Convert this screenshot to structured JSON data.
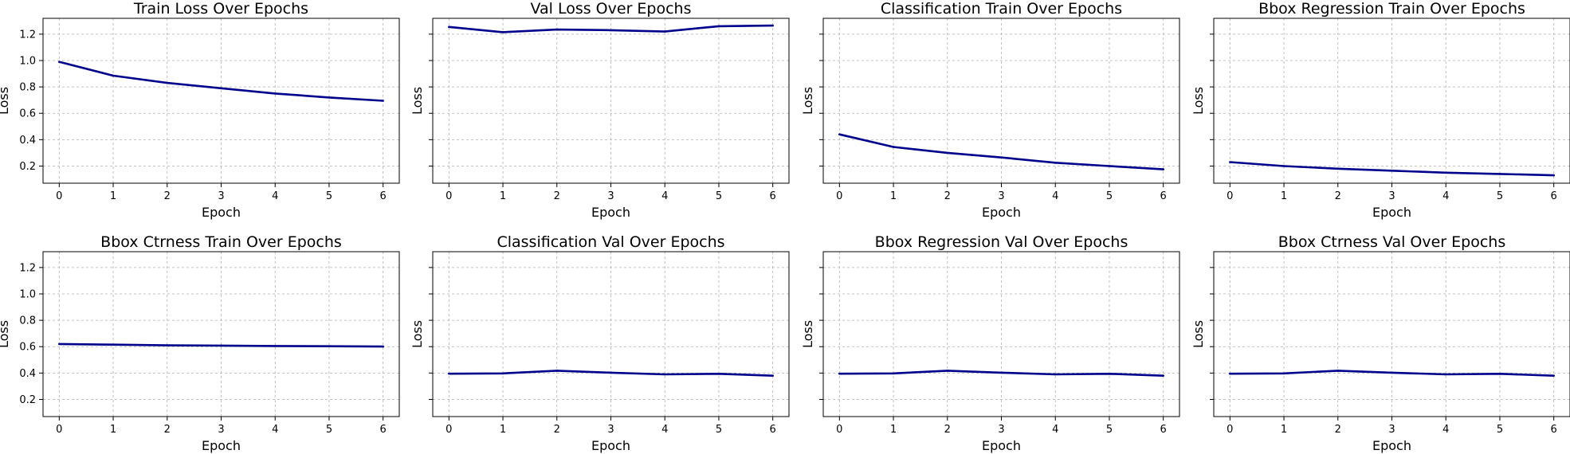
{
  "colors": {
    "line": "#00008b",
    "grid": "#b0b0b0",
    "axes": "#000000",
    "background": "#ffffff"
  },
  "shared": {
    "xlabel": "Epoch",
    "ylabel": "Loss",
    "sharey": true
  },
  "chart_data": [
    {
      "type": "line",
      "title": "Train Loss Over Epochs",
      "xlabel": "Epoch",
      "ylabel": "Loss",
      "x": [
        0,
        1,
        2,
        3,
        4,
        5,
        6
      ],
      "y": [
        0.99,
        0.885,
        0.83,
        0.79,
        0.75,
        0.72,
        0.695
      ],
      "xlim": [
        -0.3,
        6.3
      ],
      "ylim": [
        0.07,
        1.32
      ],
      "xticks": [
        0,
        1,
        2,
        3,
        4,
        5,
        6
      ],
      "yticks": [
        0.2,
        0.4,
        0.6,
        0.8,
        1.0,
        1.2
      ],
      "ytick_labels": [
        "0.2",
        "0.4",
        "0.6",
        "0.8",
        "1.0",
        "1.2"
      ],
      "grid": true,
      "show_ytick_labels": true
    },
    {
      "type": "line",
      "title": "Val Loss Over Epochs",
      "xlabel": "Epoch",
      "ylabel": "Loss",
      "x": [
        0,
        1,
        2,
        3,
        4,
        5,
        6
      ],
      "y": [
        1.255,
        1.215,
        1.235,
        1.23,
        1.22,
        1.26,
        1.265
      ],
      "xlim": [
        -0.3,
        6.3
      ],
      "ylim": [
        0.07,
        1.32
      ],
      "xticks": [
        0,
        1,
        2,
        3,
        4,
        5,
        6
      ],
      "yticks": [
        0.2,
        0.4,
        0.6,
        0.8,
        1.0,
        1.2
      ],
      "ytick_labels": [
        "0.2",
        "0.4",
        "0.6",
        "0.8",
        "1.0",
        "1.2"
      ],
      "grid": true,
      "show_ytick_labels": false
    },
    {
      "type": "line",
      "title": "Classification Train Over Epochs",
      "xlabel": "Epoch",
      "ylabel": "Loss",
      "x": [
        0,
        1,
        2,
        3,
        4,
        5,
        6
      ],
      "y": [
        0.44,
        0.345,
        0.3,
        0.265,
        0.225,
        0.2,
        0.175
      ],
      "xlim": [
        -0.3,
        6.3
      ],
      "ylim": [
        0.07,
        1.32
      ],
      "xticks": [
        0,
        1,
        2,
        3,
        4,
        5,
        6
      ],
      "yticks": [
        0.2,
        0.4,
        0.6,
        0.8,
        1.0,
        1.2
      ],
      "ytick_labels": [
        "0.2",
        "0.4",
        "0.6",
        "0.8",
        "1.0",
        "1.2"
      ],
      "grid": true,
      "show_ytick_labels": false
    },
    {
      "type": "line",
      "title": "Bbox Regression Train Over Epochs",
      "xlabel": "Epoch",
      "ylabel": "Loss",
      "x": [
        0,
        1,
        2,
        3,
        4,
        5,
        6
      ],
      "y": [
        0.23,
        0.2,
        0.18,
        0.165,
        0.15,
        0.14,
        0.13
      ],
      "xlim": [
        -0.3,
        6.3
      ],
      "ylim": [
        0.07,
        1.32
      ],
      "xticks": [
        0,
        1,
        2,
        3,
        4,
        5,
        6
      ],
      "yticks": [
        0.2,
        0.4,
        0.6,
        0.8,
        1.0,
        1.2
      ],
      "ytick_labels": [
        "0.2",
        "0.4",
        "0.6",
        "0.8",
        "1.0",
        "1.2"
      ],
      "grid": true,
      "show_ytick_labels": false
    },
    {
      "type": "line",
      "title": "Bbox Ctrness Train Over Epochs",
      "xlabel": "Epoch",
      "ylabel": "Loss",
      "x": [
        0,
        1,
        2,
        3,
        4,
        5,
        6
      ],
      "y": [
        0.62,
        0.615,
        0.61,
        0.608,
        0.605,
        0.603,
        0.601
      ],
      "xlim": [
        -0.3,
        6.3
      ],
      "ylim": [
        0.07,
        1.32
      ],
      "xticks": [
        0,
        1,
        2,
        3,
        4,
        5,
        6
      ],
      "yticks": [
        0.2,
        0.4,
        0.6,
        0.8,
        1.0,
        1.2
      ],
      "ytick_labels": [
        "0.2",
        "0.4",
        "0.6",
        "0.8",
        "1.0",
        "1.2"
      ],
      "grid": true,
      "show_ytick_labels": true
    },
    {
      "type": "line",
      "title": "Classification Val Over Epochs",
      "xlabel": "Epoch",
      "ylabel": "Loss",
      "x": [
        0,
        1,
        2,
        3,
        4,
        5,
        6
      ],
      "y": [
        0.395,
        0.397,
        0.418,
        0.403,
        0.39,
        0.394,
        0.38
      ],
      "xlim": [
        -0.3,
        6.3
      ],
      "ylim": [
        0.07,
        1.32
      ],
      "xticks": [
        0,
        1,
        2,
        3,
        4,
        5,
        6
      ],
      "yticks": [
        0.2,
        0.4,
        0.6,
        0.8,
        1.0,
        1.2
      ],
      "ytick_labels": [
        "0.2",
        "0.4",
        "0.6",
        "0.8",
        "1.0",
        "1.2"
      ],
      "grid": true,
      "show_ytick_labels": false
    },
    {
      "type": "line",
      "title": "Bbox Regression Val Over Epochs",
      "xlabel": "Epoch",
      "ylabel": "Loss",
      "x": [
        0,
        1,
        2,
        3,
        4,
        5,
        6
      ],
      "y": [
        0.395,
        0.397,
        0.418,
        0.403,
        0.39,
        0.394,
        0.38
      ],
      "xlim": [
        -0.3,
        6.3
      ],
      "ylim": [
        0.07,
        1.32
      ],
      "xticks": [
        0,
        1,
        2,
        3,
        4,
        5,
        6
      ],
      "yticks": [
        0.2,
        0.4,
        0.6,
        0.8,
        1.0,
        1.2
      ],
      "ytick_labels": [
        "0.2",
        "0.4",
        "0.6",
        "0.8",
        "1.0",
        "1.2"
      ],
      "grid": true,
      "show_ytick_labels": false
    },
    {
      "type": "line",
      "title": "Bbox Ctrness Val Over Epochs",
      "xlabel": "Epoch",
      "ylabel": "Loss",
      "x": [
        0,
        1,
        2,
        3,
        4,
        5,
        6
      ],
      "y": [
        0.395,
        0.397,
        0.418,
        0.403,
        0.39,
        0.394,
        0.38
      ],
      "xlim": [
        -0.3,
        6.3
      ],
      "ylim": [
        0.07,
        1.32
      ],
      "xticks": [
        0,
        1,
        2,
        3,
        4,
        5,
        6
      ],
      "yticks": [
        0.2,
        0.4,
        0.6,
        0.8,
        1.0,
        1.2
      ],
      "ytick_labels": [
        "0.2",
        "0.4",
        "0.6",
        "0.8",
        "1.0",
        "1.2"
      ],
      "grid": true,
      "show_ytick_labels": false
    }
  ]
}
